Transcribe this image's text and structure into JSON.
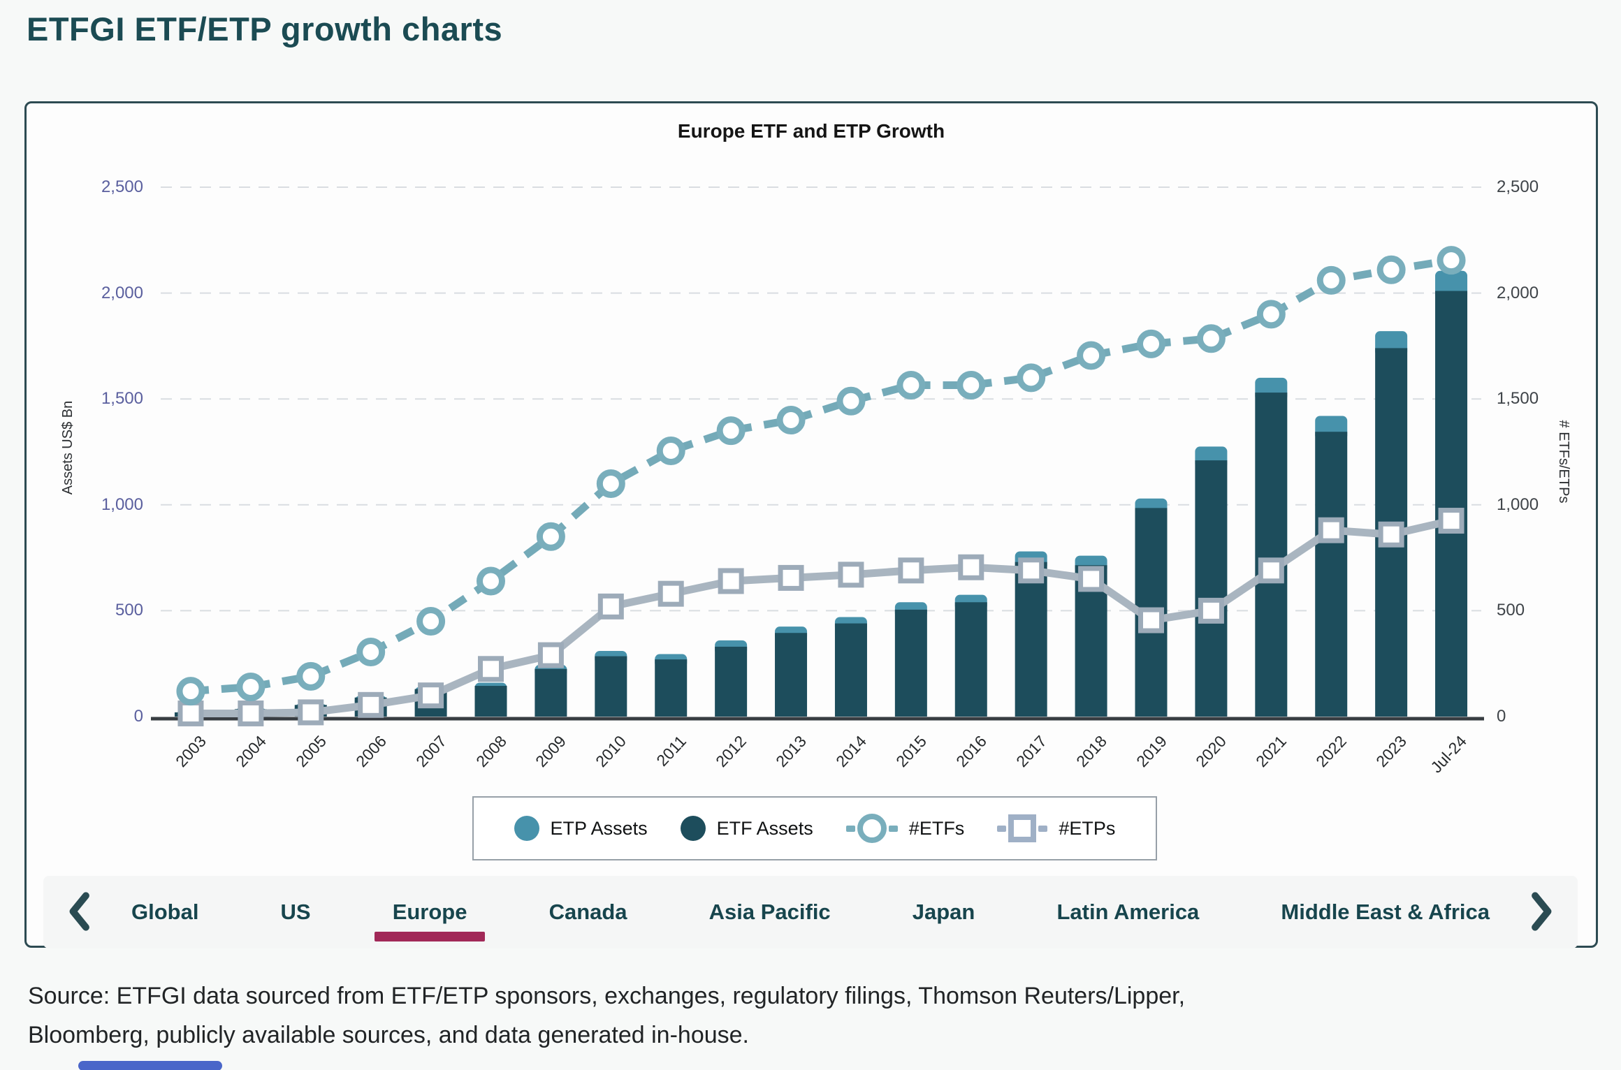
{
  "page": {
    "title": "ETFGI ETF/ETP growth charts",
    "background": "#f7f9f8",
    "card_border_color": "#2d4b52",
    "accent_underline_color": "#a12958",
    "artifact_color": "#4a66c9"
  },
  "chart_data": {
    "type": "combo-bar-line",
    "title": "Europe ETF and ETP Growth",
    "categories": [
      "2003",
      "2004",
      "2005",
      "2006",
      "2007",
      "2008",
      "2009",
      "2010",
      "2011",
      "2012",
      "2013",
      "2014",
      "2015",
      "2016",
      "2017",
      "2018",
      "2019",
      "2020",
      "2021",
      "2022",
      "2023",
      "Jul-24"
    ],
    "series": [
      {
        "name": "ETP Assets",
        "type": "bar-stacked-top",
        "axis": "left",
        "color": "#4792ab",
        "values": [
          2,
          4,
          5,
          8,
          10,
          15,
          20,
          25,
          25,
          30,
          30,
          30,
          35,
          35,
          50,
          45,
          45,
          65,
          70,
          75,
          80,
          95
        ]
      },
      {
        "name": "ETF Assets",
        "type": "bar",
        "axis": "left",
        "color": "#1d4d5c",
        "values": [
          20,
          35,
          55,
          90,
          130,
          145,
          225,
          285,
          270,
          330,
          395,
          440,
          505,
          540,
          730,
          715,
          985,
          1210,
          1530,
          1345,
          1740,
          2010
        ]
      },
      {
        "name": "#ETFs",
        "type": "line",
        "line_style": "dashed",
        "axis": "right",
        "color": "#74aab8",
        "marker": "circle",
        "marker_color": "#79aebc",
        "values": [
          120,
          140,
          190,
          305,
          450,
          640,
          850,
          1100,
          1255,
          1350,
          1400,
          1490,
          1565,
          1565,
          1600,
          1705,
          1760,
          1785,
          1900,
          2060,
          2110,
          2155
        ]
      },
      {
        "name": "#ETPs",
        "type": "line",
        "line_style": "solid",
        "axis": "right",
        "color": "#a9b5c0",
        "marker": "square",
        "marker_color": "#9dabb9",
        "values": [
          15,
          15,
          20,
          55,
          100,
          225,
          290,
          520,
          580,
          640,
          655,
          670,
          690,
          705,
          690,
          650,
          455,
          500,
          690,
          880,
          860,
          925
        ]
      }
    ],
    "left_axis": {
      "title": "Assets US$ Bn",
      "min": 0,
      "max": 2500,
      "tick_values": [
        0,
        500,
        1000,
        1500,
        2000,
        2500
      ],
      "tick_labels": [
        "0",
        "500",
        "1,000",
        "1,500",
        "2,000",
        "2,500"
      ],
      "label_color": "#5a5f9e"
    },
    "right_axis": {
      "title": "# ETFs/ETPs",
      "min": 0,
      "max": 2500,
      "tick_values": [
        0,
        500,
        1000,
        1500,
        2000,
        2500
      ],
      "tick_labels": [
        "0",
        "500",
        "1,000",
        "1,500",
        "2,000",
        "2,500"
      ],
      "label_color": "#3f4449"
    },
    "grid": {
      "horizontal": true,
      "style": "dashed",
      "color": "#d9dde1"
    },
    "legend_position": "bottom-center"
  },
  "legend": {
    "items": [
      {
        "label": "ETP Assets",
        "marker": "filled-circle",
        "color": "#4792ab"
      },
      {
        "label": "ETF Assets",
        "marker": "filled-circle",
        "color": "#1d4d5c"
      },
      {
        "label": "#ETFs",
        "marker": "ring-circle",
        "color": "#79aebc"
      },
      {
        "label": "#ETPs",
        "marker": "ring-square",
        "color": "#9fb0c6"
      }
    ]
  },
  "tabs": {
    "prev_icon": "chevron-left",
    "next_icon": "chevron-right",
    "items": [
      {
        "label": "Global",
        "active": false
      },
      {
        "label": "US",
        "active": false
      },
      {
        "label": "Europe",
        "active": true
      },
      {
        "label": "Canada",
        "active": false
      },
      {
        "label": "Asia Pacific",
        "active": false
      },
      {
        "label": "Japan",
        "active": false
      },
      {
        "label": "Latin America",
        "active": false
      },
      {
        "label": "Middle East & Africa",
        "active": false
      }
    ]
  },
  "source": {
    "line1": "Source: ETFGI data sourced from ETF/ETP sponsors, exchanges, regulatory filings, Thomson Reuters/Lipper,",
    "line2": "Bloomberg, publicly available sources, and data generated in-house."
  }
}
